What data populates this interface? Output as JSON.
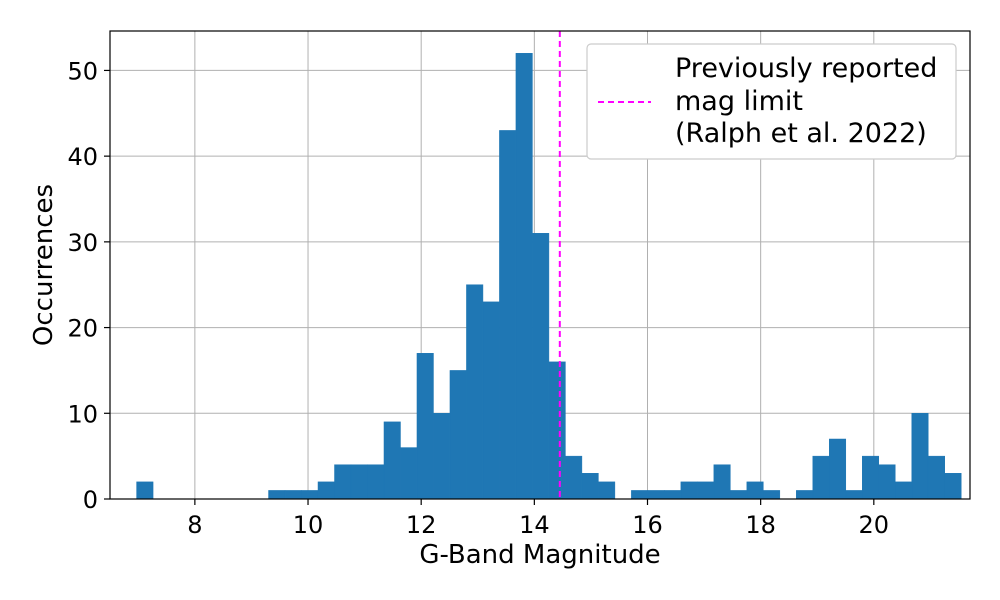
{
  "chart_data": {
    "type": "bar",
    "xlabel": "G-Band Magnitude",
    "ylabel": "Occurrences",
    "xlim": [
      6.5,
      21.7
    ],
    "ylim": [
      0,
      54.6
    ],
    "x_ticks": [
      8,
      10,
      12,
      14,
      16,
      18,
      20
    ],
    "y_ticks": [
      0,
      10,
      20,
      30,
      40,
      50
    ],
    "grid": true,
    "bar_color": "#1f77b4",
    "bins": {
      "start": 6.97,
      "width": 0.2915,
      "counts": [
        2,
        0,
        0,
        0,
        0,
        0,
        0,
        0,
        1,
        1,
        1,
        2,
        4,
        4,
        4,
        9,
        6,
        17,
        10,
        15,
        25,
        23,
        43,
        52,
        31,
        16,
        5,
        3,
        2,
        0,
        1,
        1,
        1,
        2,
        2,
        4,
        1,
        2,
        1,
        0,
        1,
        5,
        7,
        1,
        5,
        4,
        2,
        10,
        5,
        3
      ]
    },
    "reference_line": {
      "x": 14.45,
      "color": "#ff00ff",
      "style": "dashed",
      "label_lines": [
        "Previously reported",
        "mag limit",
        "(Ralph et al. 2022)"
      ]
    },
    "legend_position": "top-right"
  }
}
